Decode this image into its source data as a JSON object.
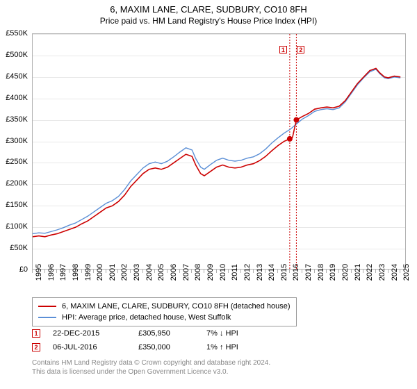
{
  "title": {
    "main": "6, MAXIM LANE, CLARE, SUDBURY, CO10 8FH",
    "sub": "Price paid vs. HM Land Registry's House Price Index (HPI)"
  },
  "chart": {
    "type": "line",
    "xlim": [
      1995,
      2025.5
    ],
    "ylim": [
      0,
      550000
    ],
    "ytick_step": 50000,
    "ytick_labels": [
      "£0",
      "£50K",
      "£100K",
      "£150K",
      "£200K",
      "£250K",
      "£300K",
      "£350K",
      "£400K",
      "£450K",
      "£500K",
      "£550K"
    ],
    "xtick_years": [
      1995,
      1996,
      1997,
      1998,
      1999,
      2000,
      2001,
      2002,
      2003,
      2004,
      2005,
      2006,
      2007,
      2008,
      2009,
      2010,
      2011,
      2012,
      2013,
      2014,
      2015,
      2016,
      2017,
      2018,
      2019,
      2020,
      2021,
      2022,
      2023,
      2024,
      2025
    ],
    "grid_color": "#e8e8e8",
    "border_color": "#b0b0b0",
    "series": [
      {
        "name": "property",
        "color": "#cc0000",
        "width": 1.6,
        "points": [
          [
            1995,
            78000
          ],
          [
            1995.5,
            80000
          ],
          [
            1996,
            78000
          ],
          [
            1996.5,
            82000
          ],
          [
            1997,
            85000
          ],
          [
            1997.5,
            90000
          ],
          [
            1998,
            95000
          ],
          [
            1998.5,
            100000
          ],
          [
            1999,
            108000
          ],
          [
            1999.5,
            115000
          ],
          [
            2000,
            125000
          ],
          [
            2000.5,
            135000
          ],
          [
            2001,
            145000
          ],
          [
            2001.5,
            150000
          ],
          [
            2002,
            160000
          ],
          [
            2002.5,
            175000
          ],
          [
            2003,
            195000
          ],
          [
            2003.5,
            210000
          ],
          [
            2004,
            225000
          ],
          [
            2004.5,
            235000
          ],
          [
            2005,
            238000
          ],
          [
            2005.5,
            235000
          ],
          [
            2006,
            240000
          ],
          [
            2006.5,
            250000
          ],
          [
            2007,
            260000
          ],
          [
            2007.5,
            270000
          ],
          [
            2008,
            265000
          ],
          [
            2008.3,
            245000
          ],
          [
            2008.7,
            225000
          ],
          [
            2009,
            220000
          ],
          [
            2009.5,
            230000
          ],
          [
            2010,
            240000
          ],
          [
            2010.5,
            245000
          ],
          [
            2011,
            240000
          ],
          [
            2011.5,
            238000
          ],
          [
            2012,
            240000
          ],
          [
            2012.5,
            245000
          ],
          [
            2013,
            248000
          ],
          [
            2013.5,
            255000
          ],
          [
            2014,
            265000
          ],
          [
            2014.5,
            278000
          ],
          [
            2015,
            290000
          ],
          [
            2015.5,
            300000
          ],
          [
            2015.97,
            305950
          ],
          [
            2016.2,
            310000
          ],
          [
            2016.51,
            350000
          ],
          [
            2017,
            358000
          ],
          [
            2017.5,
            365000
          ],
          [
            2018,
            375000
          ],
          [
            2018.5,
            378000
          ],
          [
            2019,
            380000
          ],
          [
            2019.5,
            378000
          ],
          [
            2020,
            382000
          ],
          [
            2020.5,
            395000
          ],
          [
            2021,
            415000
          ],
          [
            2021.5,
            435000
          ],
          [
            2022,
            450000
          ],
          [
            2022.5,
            465000
          ],
          [
            2023,
            470000
          ],
          [
            2023.3,
            460000
          ],
          [
            2023.7,
            450000
          ],
          [
            2024,
            448000
          ],
          [
            2024.5,
            452000
          ],
          [
            2025,
            450000
          ]
        ]
      },
      {
        "name": "hpi",
        "color": "#5b8fd6",
        "width": 1.4,
        "points": [
          [
            1995,
            85000
          ],
          [
            1995.5,
            87000
          ],
          [
            1996,
            86000
          ],
          [
            1996.5,
            90000
          ],
          [
            1997,
            94000
          ],
          [
            1997.5,
            99000
          ],
          [
            1998,
            105000
          ],
          [
            1998.5,
            110000
          ],
          [
            1999,
            118000
          ],
          [
            1999.5,
            126000
          ],
          [
            2000,
            136000
          ],
          [
            2000.5,
            146000
          ],
          [
            2001,
            156000
          ],
          [
            2001.5,
            162000
          ],
          [
            2002,
            172000
          ],
          [
            2002.5,
            188000
          ],
          [
            2003,
            208000
          ],
          [
            2003.5,
            223000
          ],
          [
            2004,
            238000
          ],
          [
            2004.5,
            248000
          ],
          [
            2005,
            252000
          ],
          [
            2005.5,
            248000
          ],
          [
            2006,
            254000
          ],
          [
            2006.5,
            264000
          ],
          [
            2007,
            275000
          ],
          [
            2007.5,
            285000
          ],
          [
            2008,
            280000
          ],
          [
            2008.3,
            260000
          ],
          [
            2008.7,
            240000
          ],
          [
            2009,
            235000
          ],
          [
            2009.5,
            246000
          ],
          [
            2010,
            256000
          ],
          [
            2010.5,
            261000
          ],
          [
            2011,
            256000
          ],
          [
            2011.5,
            254000
          ],
          [
            2012,
            256000
          ],
          [
            2012.5,
            261000
          ],
          [
            2013,
            264000
          ],
          [
            2013.5,
            271000
          ],
          [
            2014,
            282000
          ],
          [
            2014.5,
            296000
          ],
          [
            2015,
            308000
          ],
          [
            2015.5,
            319000
          ],
          [
            2016,
            328000
          ],
          [
            2016.5,
            340000
          ],
          [
            2017,
            352000
          ],
          [
            2017.5,
            360000
          ],
          [
            2018,
            370000
          ],
          [
            2018.5,
            374000
          ],
          [
            2019,
            376000
          ],
          [
            2019.5,
            374000
          ],
          [
            2020,
            378000
          ],
          [
            2020.5,
            392000
          ],
          [
            2021,
            412000
          ],
          [
            2021.5,
            432000
          ],
          [
            2022,
            448000
          ],
          [
            2022.5,
            462000
          ],
          [
            2023,
            468000
          ],
          [
            2023.3,
            458000
          ],
          [
            2023.7,
            448000
          ],
          [
            2024,
            446000
          ],
          [
            2024.5,
            450000
          ],
          [
            2025,
            448000
          ]
        ]
      }
    ],
    "markers": [
      {
        "n": "1",
        "x": 2015.97,
        "y": 305950,
        "color": "#cc0000"
      },
      {
        "n": "2",
        "x": 2016.51,
        "y": 350000,
        "color": "#cc0000"
      }
    ]
  },
  "legend": {
    "items": [
      {
        "color": "#cc0000",
        "label": "6, MAXIM LANE, CLARE, SUDBURY, CO10 8FH (detached house)"
      },
      {
        "color": "#5b8fd6",
        "label": "HPI: Average price, detached house, West Suffolk"
      }
    ]
  },
  "sales": [
    {
      "n": "1",
      "color": "#cc0000",
      "date": "22-DEC-2015",
      "price": "£305,950",
      "pct": "7% ↓ HPI"
    },
    {
      "n": "2",
      "color": "#cc0000",
      "date": "06-JUL-2016",
      "price": "£350,000",
      "pct": "1% ↑ HPI"
    }
  ],
  "footer": {
    "line1": "Contains HM Land Registry data © Crown copyright and database right 2024.",
    "line2": "This data is licensed under the Open Government Licence v3.0."
  }
}
